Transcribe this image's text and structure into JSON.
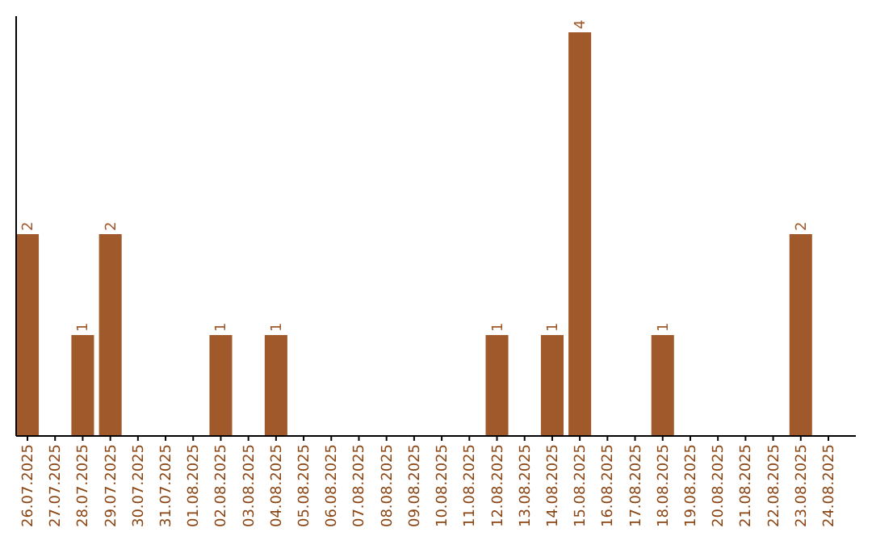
{
  "chart_data": {
    "type": "bar",
    "categories": [
      "26.07.2025",
      "27.07.2025",
      "28.07.2025",
      "29.07.2025",
      "30.07.2025",
      "31.07.2025",
      "01.08.2025",
      "02.08.2025",
      "03.08.2025",
      "04.08.2025",
      "05.08.2025",
      "06.08.2025",
      "07.08.2025",
      "08.08.2025",
      "09.08.2025",
      "10.08.2025",
      "11.08.2025",
      "12.08.2025",
      "13.08.2025",
      "14.08.2025",
      "15.08.2025",
      "16.08.2025",
      "17.08.2025",
      "18.08.2025",
      "19.08.2025",
      "20.08.2025",
      "21.08.2025",
      "22.08.2025",
      "23.08.2025",
      "24.08.2025"
    ],
    "values": [
      2,
      0,
      1,
      2,
      0,
      0,
      0,
      1,
      0,
      1,
      0,
      0,
      0,
      0,
      0,
      0,
      0,
      1,
      0,
      1,
      4,
      0,
      0,
      1,
      0,
      0,
      0,
      0,
      2,
      0
    ],
    "value_labels": [
      "2",
      null,
      "1",
      "2",
      null,
      null,
      null,
      "1",
      null,
      "1",
      null,
      null,
      null,
      null,
      null,
      null,
      null,
      "1",
      null,
      "1",
      "4",
      null,
      null,
      "1",
      null,
      null,
      null,
      null,
      "2",
      null
    ],
    "color": "#a0592b"
  }
}
